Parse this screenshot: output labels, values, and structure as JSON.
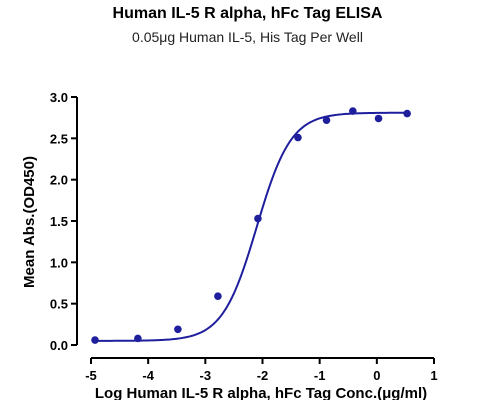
{
  "chart_data": {
    "type": "scatter",
    "title": "Human IL-5 R alpha, hFc Tag ELISA",
    "subtitle": "0.05μg Human IL-5, His Tag Per Well",
    "xlabel": "Log Human IL-5 R alpha, hFc Tag Conc.(μg/ml)",
    "ylabel": "Mean Abs.(OD450)",
    "xlim": [
      -5,
      1
    ],
    "ylim": [
      0,
      3.0
    ],
    "xticks": [
      "-5",
      "-4",
      "-3",
      "-2",
      "-1",
      "0",
      "1"
    ],
    "yticks": [
      "0.0",
      "0.5",
      "1.0",
      "1.5",
      "2.0",
      "2.5",
      "3.0"
    ],
    "grid": false,
    "series": [
      {
        "points": [
          {
            "x": -4.93,
            "y": 0.06
          },
          {
            "x": -4.18,
            "y": 0.08
          },
          {
            "x": -3.48,
            "y": 0.19
          },
          {
            "x": -2.78,
            "y": 0.59
          },
          {
            "x": -2.08,
            "y": 1.53
          },
          {
            "x": -1.38,
            "y": 2.51
          },
          {
            "x": -0.88,
            "y": 2.72
          },
          {
            "x": -0.42,
            "y": 2.83
          },
          {
            "x": 0.03,
            "y": 2.74
          },
          {
            "x": 0.53,
            "y": 2.8
          }
        ],
        "fit": {
          "model": "4PL",
          "bottom": 0.05,
          "top": 2.81,
          "logEC50": -2.1,
          "hill": 1.45
        }
      }
    ],
    "color": "#1f1f9e"
  }
}
